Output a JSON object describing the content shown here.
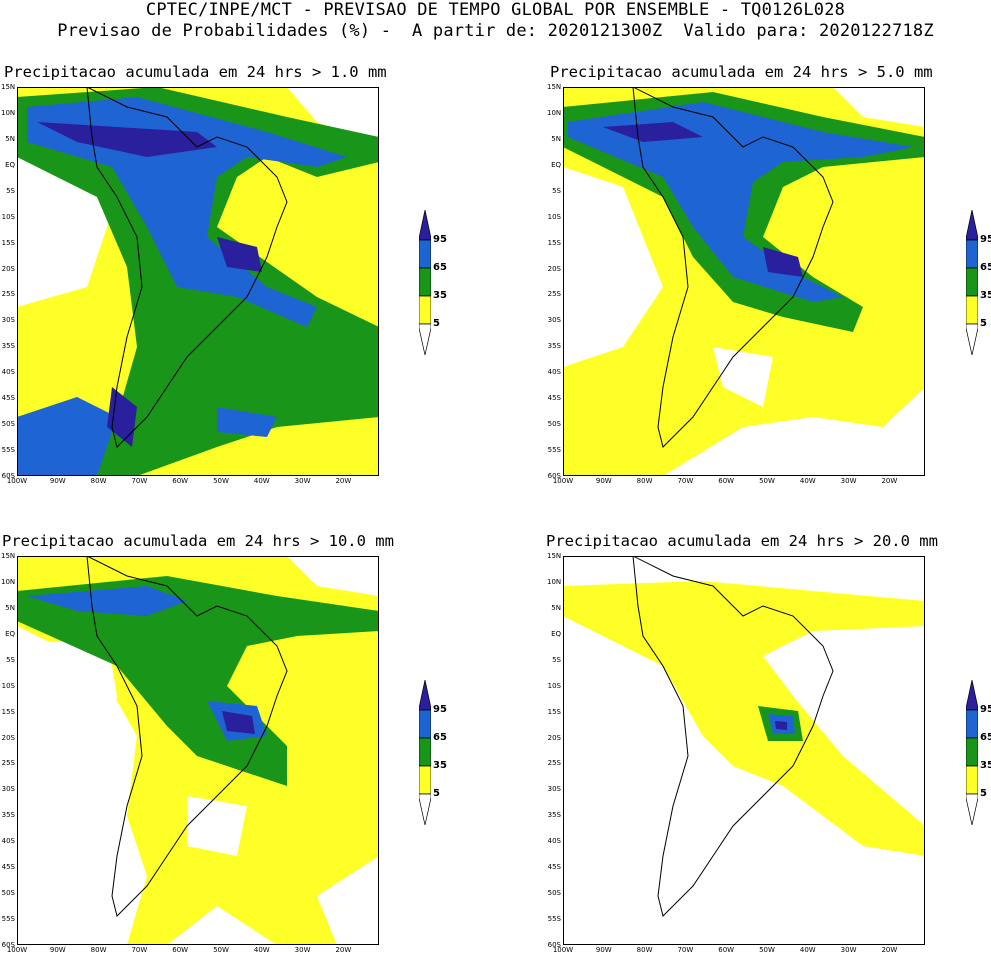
{
  "header": {
    "line1": "CPTEC/INPE/MCT - PREVISAO DE TEMPO GLOBAL POR ENSEMBLE - TQ0126L028",
    "line2": "Previsao de Probabilidades (%) -  A partir de: 2020121300Z  Valido para: 2020122718Z"
  },
  "lat_labels": [
    "15N",
    "10N",
    "5N",
    "EQ",
    "5S",
    "10S",
    "15S",
    "20S",
    "25S",
    "30S",
    "35S",
    "40S",
    "45S",
    "50S",
    "55S",
    "60S"
  ],
  "lon_labels": [
    "100W",
    "90W",
    "80W",
    "70W",
    "60W",
    "50W",
    "40W",
    "30W",
    "20W"
  ],
  "legend": {
    "levels": [
      "95",
      "65",
      "35",
      "5"
    ],
    "colors": {
      "p95": "#2a1f9c",
      "p65": "#1e64d2",
      "p35": "#199619",
      "p5": "#ffff28",
      "bg": "#ffffff",
      "border": "#000000"
    }
  },
  "panels": [
    {
      "title": "Precipitacao acumulada em 24 hrs > 1.0 mm"
    },
    {
      "title": "Precipitacao acumulada em 24 hrs > 5.0 mm"
    },
    {
      "title": "Precipitacao acumulada em 24 hrs > 10.0 mm"
    },
    {
      "title": "Precipitacao acumulada em 24 hrs > 20.0 mm"
    }
  ]
}
